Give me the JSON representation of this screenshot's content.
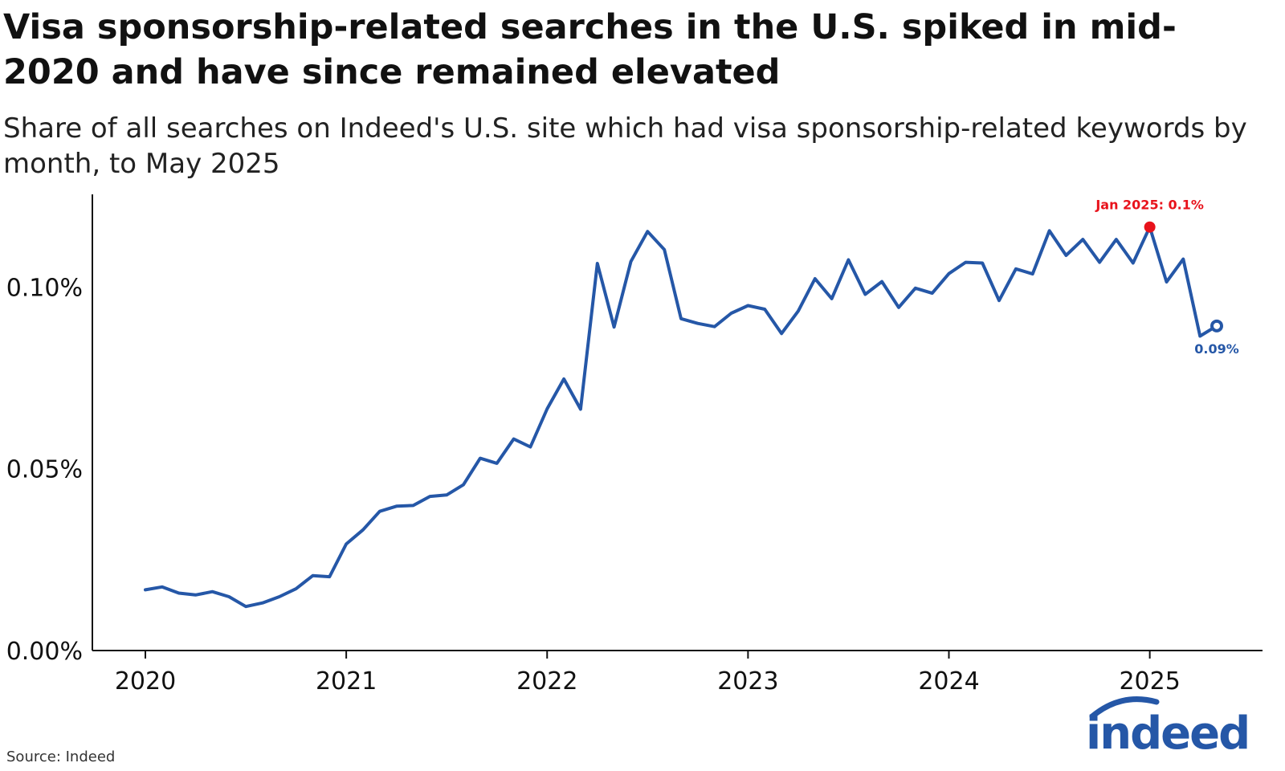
{
  "title": "Visa sponsorship-related searches in the U.S. spiked in mid-2020 and have since remained elevated",
  "subtitle": "Share of all searches on Indeed's U.S. site which had visa sponsorship-related keywords by month, to May 2025",
  "source": "Source: Indeed",
  "logo_text": "indeed",
  "colors": {
    "line": "#2557a7",
    "highlight": "#e8121b",
    "axis": "#111111"
  },
  "chart_data": {
    "type": "line",
    "title": "Visa sponsorship-related searches in the U.S. spiked in mid-2020 and have since remained elevated",
    "subtitle": "Share of all searches on Indeed's U.S. site which had visa sponsorship-related keywords by month, to May 2025",
    "xlabel": "",
    "ylabel": "",
    "x_ticks": [
      "2020",
      "2021",
      "2022",
      "2023",
      "2024",
      "2025"
    ],
    "y_ticks": [
      0.0,
      0.05,
      0.1
    ],
    "y_tick_labels": [
      "0.00%",
      "0.05%",
      "0.10%"
    ],
    "ylim": [
      0.0,
      0.1255
    ],
    "grid": false,
    "series": [
      {
        "x_start": "2020-01",
        "unit": "% of all searches",
        "values": [
          0.0167,
          0.0175,
          0.0158,
          0.0153,
          0.0162,
          0.0148,
          0.0121,
          0.0131,
          0.0148,
          0.017,
          0.0206,
          0.0203,
          0.0293,
          0.0332,
          0.0383,
          0.0397,
          0.0399,
          0.0424,
          0.0428,
          0.0456,
          0.0529,
          0.0515,
          0.0582,
          0.056,
          0.0665,
          0.0747,
          0.0664,
          0.1065,
          0.089,
          0.107,
          0.1153,
          0.1103,
          0.0913,
          0.09,
          0.0891,
          0.0928,
          0.0949,
          0.0939,
          0.0872,
          0.0934,
          0.1023,
          0.0968,
          0.1075,
          0.098,
          0.1015,
          0.0944,
          0.0997,
          0.0983,
          0.1037,
          0.1068,
          0.1066,
          0.0963,
          0.105,
          0.1036,
          0.1155,
          0.1087,
          0.1131,
          0.1068,
          0.1131,
          0.1066,
          0.1165,
          0.1014,
          0.1077,
          0.0865,
          0.0893
        ]
      }
    ],
    "annotations": [
      {
        "label": "Jan 2025: 0.1%",
        "x": "2025-01",
        "value": 0.1165,
        "color": "#e8121b"
      },
      {
        "label": "0.09%",
        "x": "2025-05",
        "value": 0.0893,
        "color": "#2557a7"
      }
    ]
  }
}
